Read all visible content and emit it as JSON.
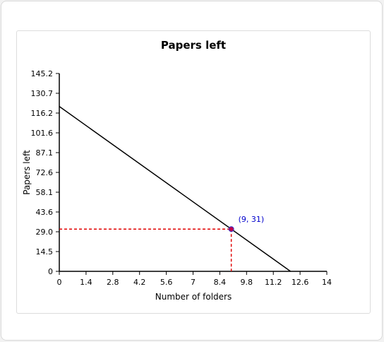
{
  "chart_data": {
    "type": "line",
    "title": "Papers left",
    "xlabel": "Number of folders",
    "ylabel": "Papers left",
    "xlim": [
      0,
      14
    ],
    "ylim": [
      0,
      145.2
    ],
    "x_ticks": [
      "0",
      "1.4",
      "2.8",
      "4.2",
      "5.6",
      "7",
      "8.4",
      "9.8",
      "11.2",
      "12.6",
      "14"
    ],
    "y_ticks": [
      "0",
      "14.5",
      "29.0",
      "43.6",
      "58.1",
      "72.6",
      "87.1",
      "101.6",
      "116.2",
      "130.7",
      "145.2"
    ],
    "series": [
      {
        "points": [
          [
            0,
            121
          ],
          [
            12.1,
            0
          ]
        ]
      }
    ],
    "highlight": {
      "x": 9,
      "y": 31,
      "label": "(9, 31)"
    },
    "grid": false,
    "colors": {
      "line": "#000000",
      "guide": "#e00000",
      "point_fill": "#c0004a",
      "point_stroke": "#3333cc",
      "label": "#0000cc"
    }
  }
}
